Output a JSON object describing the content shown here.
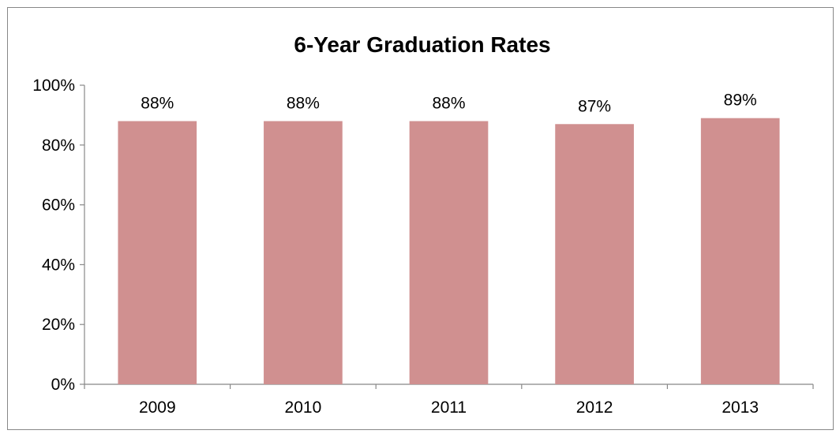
{
  "chart_data": {
    "type": "bar",
    "title": "6-Year Graduation Rates",
    "xlabel": "",
    "ylabel": "",
    "categories": [
      "2009",
      "2010",
      "2011",
      "2012",
      "2013"
    ],
    "values": [
      88,
      88,
      88,
      87,
      89
    ],
    "data_labels": [
      "88%",
      "88%",
      "88%",
      "87%",
      "89%"
    ],
    "ylim": [
      0,
      100
    ],
    "yticks": [
      0,
      20,
      40,
      60,
      80,
      100
    ],
    "ytick_labels": [
      "0%",
      "20%",
      "40%",
      "60%",
      "80%",
      "100%"
    ],
    "grid": false,
    "legend": "none",
    "bar_color": "#d09090"
  }
}
